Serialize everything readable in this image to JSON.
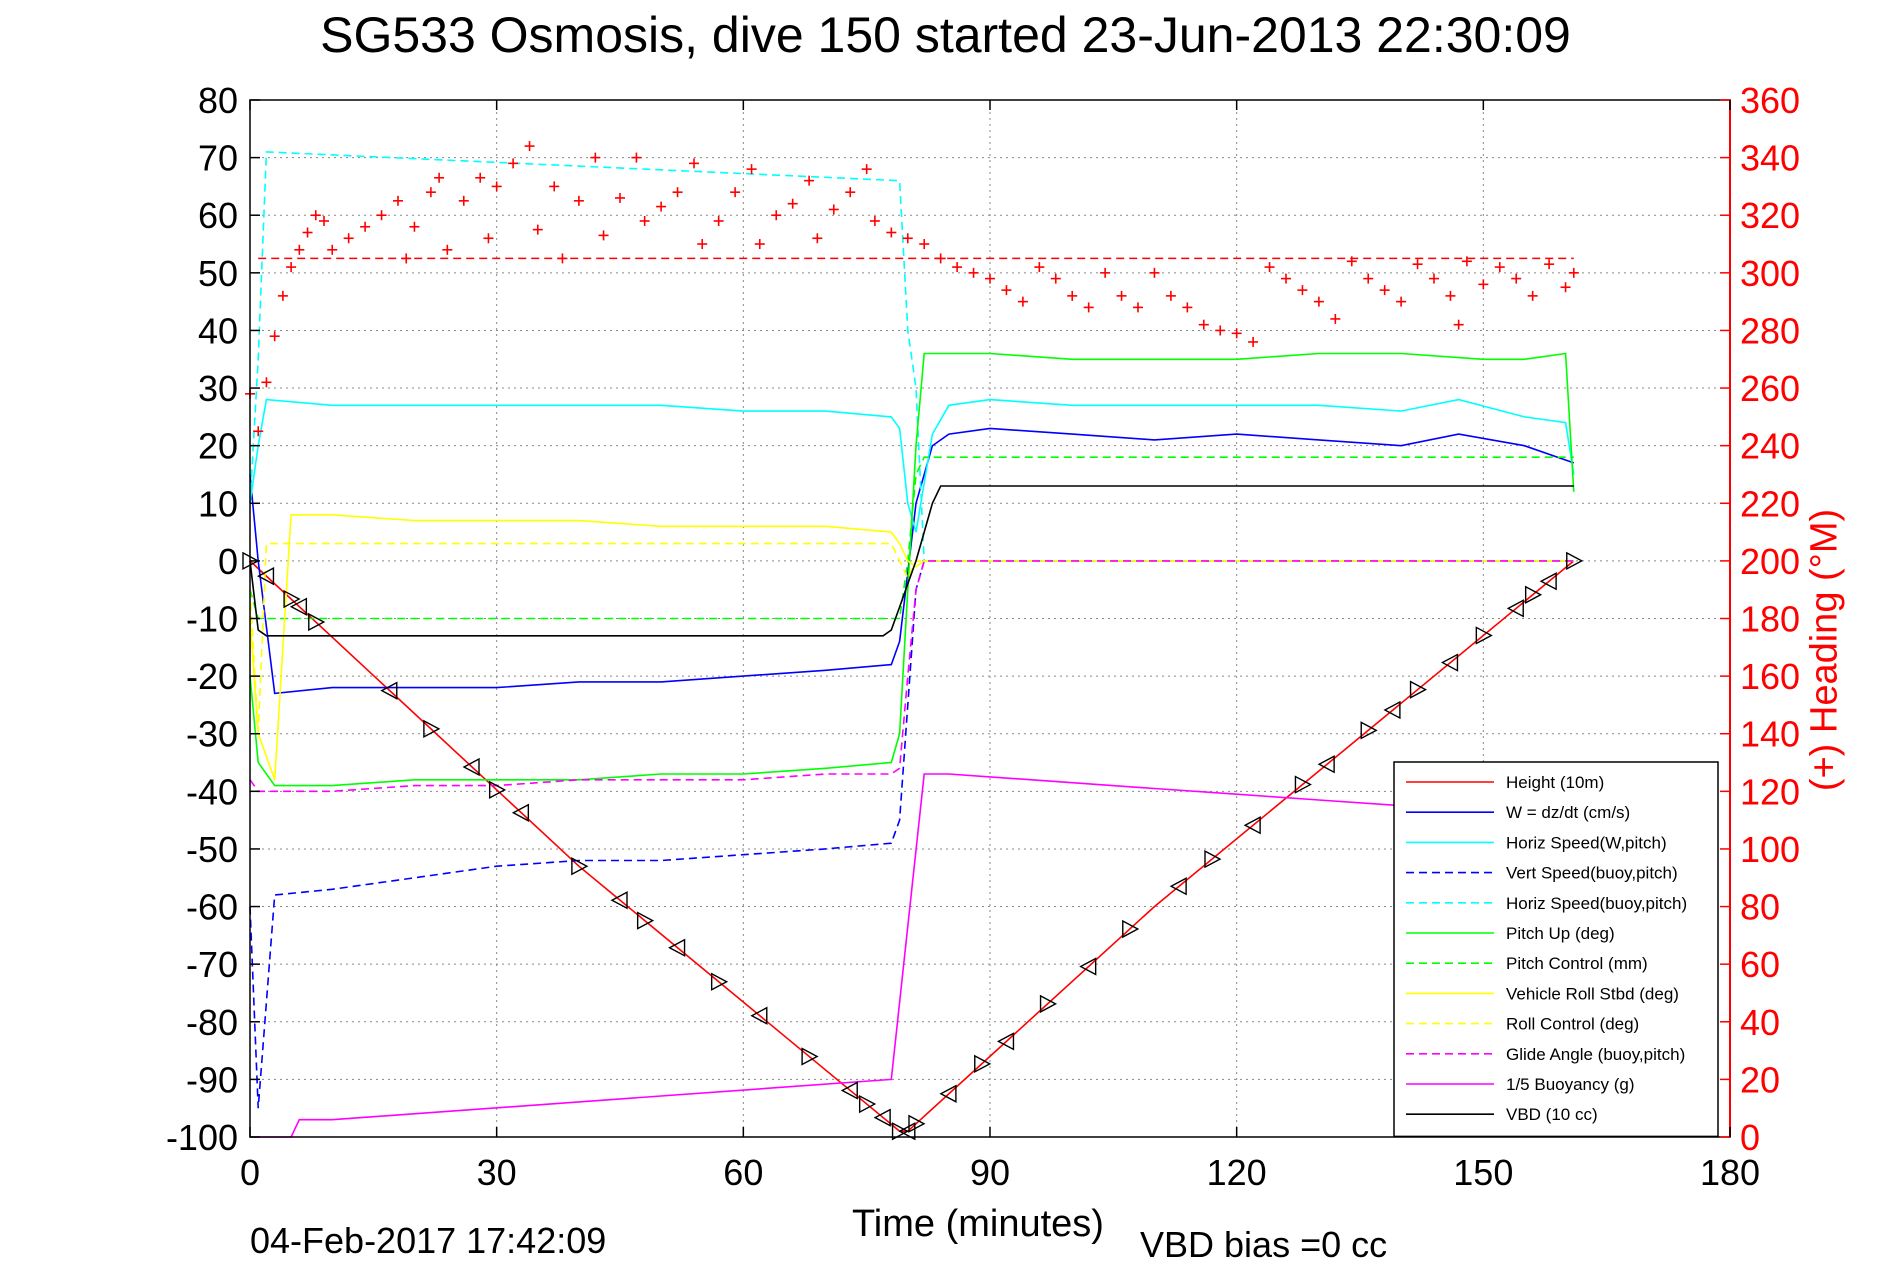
{
  "header": {
    "title": "SG533 Osmosis, dive 150 started 23-Jun-2013 22:30:09",
    "footer_date": "04-Feb-2017 17:42:09",
    "footer_vbd": "VBD bias =0 cc"
  },
  "colors": {
    "height": "#ff0000",
    "w": "#0000ff",
    "horiz_w": "#00ffff",
    "vert_buoy": "#0000ff",
    "horiz_buoy": "#00ffff",
    "pitch_up": "#00ff00",
    "pitch_ctrl": "#00ff00",
    "roll": "#ffff00",
    "roll_ctrl": "#ffff00",
    "glide": "#ff00ff",
    "buoyancy": "#ff00ff",
    "vbd": "#000000",
    "heading": "#ff0000",
    "axis_right": "#ff0000"
  },
  "chart_data": {
    "type": "line",
    "xlabel": "Time (minutes)",
    "ylabel": "",
    "y2label": "(+) Heading (°M)",
    "xlim": [
      0,
      180
    ],
    "ylim": [
      -100,
      80
    ],
    "y2lim": [
      0,
      360
    ],
    "xticks": [
      0,
      30,
      60,
      90,
      120,
      150,
      180
    ],
    "yticks": [
      -100,
      -90,
      -80,
      -70,
      -60,
      -50,
      -40,
      -30,
      -20,
      -10,
      0,
      10,
      20,
      30,
      40,
      50,
      60,
      70,
      80
    ],
    "y2ticks": [
      0,
      20,
      40,
      60,
      80,
      100,
      120,
      140,
      160,
      180,
      200,
      220,
      240,
      260,
      280,
      300,
      320,
      340,
      360
    ],
    "grid": true,
    "legend_position": "bottom-right",
    "series": [
      {
        "name": "Height (10m)",
        "style": "solid",
        "x": [
          0,
          40,
          79,
          80,
          110,
          161
        ],
        "y": [
          0,
          -53,
          -99,
          -99,
          -60,
          0
        ]
      },
      {
        "name": "W = dz/dt (cm/s)",
        "style": "solid",
        "x": [
          0,
          1,
          3,
          10,
          20,
          30,
          40,
          50,
          60,
          70,
          78,
          79,
          80,
          81,
          83,
          85,
          90,
          100,
          110,
          120,
          130,
          140,
          147,
          155,
          161
        ],
        "y": [
          15,
          0,
          -23,
          -22,
          -22,
          -22,
          -21,
          -21,
          -20,
          -19,
          -18,
          -14,
          -2,
          10,
          20,
          22,
          23,
          22,
          21,
          22,
          21,
          20,
          22,
          20,
          17
        ]
      },
      {
        "name": "Horiz Speed(W,pitch)",
        "style": "solid",
        "x": [
          0,
          1,
          2,
          10,
          20,
          30,
          40,
          50,
          60,
          70,
          78,
          79,
          80,
          81,
          83,
          85,
          90,
          100,
          110,
          120,
          130,
          140,
          147,
          155,
          160,
          161
        ],
        "y": [
          10,
          20,
          28,
          27,
          27,
          27,
          27,
          27,
          26,
          26,
          25,
          23,
          10,
          5,
          22,
          27,
          28,
          27,
          27,
          27,
          27,
          26,
          28,
          25,
          24,
          15
        ]
      },
      {
        "name": "Vert Speed(buoy,pitch)",
        "style": "dashed",
        "x": [
          0,
          1,
          3,
          10,
          20,
          30,
          40,
          50,
          60,
          70,
          78,
          79,
          80,
          81,
          82,
          161
        ],
        "y": [
          -60,
          -95,
          -58,
          -57,
          -55,
          -53,
          -52,
          -52,
          -51,
          -50,
          -49,
          -45,
          -25,
          -5,
          0,
          0
        ]
      },
      {
        "name": "Horiz Speed(buoy,pitch)",
        "style": "dashed",
        "x": [
          0,
          1,
          2,
          79,
          80,
          81,
          82,
          161
        ],
        "y": [
          10,
          35,
          71,
          66,
          40,
          30,
          0,
          0
        ]
      },
      {
        "name": "Pitch Up (deg)",
        "style": "solid",
        "x": [
          0,
          1,
          3,
          10,
          20,
          30,
          40,
          50,
          60,
          70,
          78,
          79,
          80,
          81,
          82,
          90,
          100,
          110,
          120,
          130,
          140,
          150,
          155,
          160,
          161
        ],
        "y": [
          -20,
          -35,
          -39,
          -39,
          -38,
          -38,
          -38,
          -37,
          -37,
          -36,
          -35,
          -30,
          -5,
          20,
          36,
          36,
          35,
          35,
          35,
          36,
          36,
          35,
          35,
          36,
          12
        ]
      },
      {
        "name": "Pitch Control (mm)",
        "style": "dashed",
        "x": [
          0,
          1,
          2,
          79,
          80,
          81,
          82,
          161
        ],
        "y": [
          -5,
          -10,
          -10,
          -10,
          0,
          15,
          18,
          18
        ]
      },
      {
        "name": "Vehicle Roll Stbd (deg)",
        "style": "solid",
        "x": [
          0,
          1,
          3,
          5,
          10,
          20,
          30,
          40,
          50,
          60,
          70,
          78,
          79,
          80,
          81,
          82,
          161
        ],
        "y": [
          -10,
          -30,
          -38,
          8,
          8,
          7,
          7,
          7,
          6,
          6,
          6,
          5,
          3,
          0,
          -1,
          0,
          0
        ]
      },
      {
        "name": "Roll Control (deg)",
        "style": "dashed",
        "x": [
          0,
          1,
          2,
          78,
          79,
          80,
          81,
          161
        ],
        "y": [
          -5,
          -30,
          3,
          3,
          0,
          -3,
          0,
          0
        ]
      },
      {
        "name": "Glide Angle (buoy,pitch)",
        "style": "dashed",
        "x": [
          0,
          1,
          3,
          10,
          20,
          30,
          40,
          50,
          60,
          70,
          78,
          79,
          80,
          81,
          82,
          161
        ],
        "y": [
          -38,
          -40,
          -40,
          -40,
          -39,
          -39,
          -38,
          -38,
          -38,
          -37,
          -37,
          -36,
          -20,
          -5,
          0,
          0
        ]
      },
      {
        "name": "1/5 Buoyancy (g)",
        "style": "solid",
        "x": [
          0,
          5,
          6,
          10,
          78,
          82,
          85,
          90,
          100,
          110,
          120,
          130,
          140,
          145
        ],
        "y": [
          -100,
          -100,
          -97,
          -97,
          -90,
          -37,
          -37,
          -37.5,
          -38.5,
          -39.5,
          -40.5,
          -41.5,
          -42.5,
          -43
        ]
      },
      {
        "name": "VBD (10 cc)",
        "style": "solid",
        "x": [
          0,
          1,
          2,
          77,
          78,
          79,
          80,
          81,
          82,
          83,
          84,
          90,
          161
        ],
        "y": [
          0,
          -12,
          -13,
          -13,
          -12,
          -8,
          -4,
          0,
          5,
          10,
          13,
          13,
          13
        ]
      }
    ],
    "heading_reference": 305,
    "heading_points": [
      [
        0,
        258
      ],
      [
        1,
        245
      ],
      [
        2,
        262
      ],
      [
        3,
        278
      ],
      [
        4,
        292
      ],
      [
        5,
        302
      ],
      [
        6,
        308
      ],
      [
        7,
        314
      ],
      [
        8,
        320
      ],
      [
        9,
        318
      ],
      [
        10,
        308
      ],
      [
        12,
        312
      ],
      [
        14,
        316
      ],
      [
        16,
        320
      ],
      [
        18,
        325
      ],
      [
        19,
        305
      ],
      [
        20,
        316
      ],
      [
        22,
        328
      ],
      [
        23,
        333
      ],
      [
        24,
        308
      ],
      [
        26,
        325
      ],
      [
        28,
        333
      ],
      [
        29,
        312
      ],
      [
        30,
        330
      ],
      [
        32,
        338
      ],
      [
        34,
        344
      ],
      [
        35,
        315
      ],
      [
        37,
        330
      ],
      [
        38,
        305
      ],
      [
        40,
        325
      ],
      [
        42,
        340
      ],
      [
        43,
        313
      ],
      [
        45,
        326
      ],
      [
        47,
        340
      ],
      [
        48,
        318
      ],
      [
        50,
        323
      ],
      [
        52,
        328
      ],
      [
        54,
        338
      ],
      [
        55,
        310
      ],
      [
        57,
        318
      ],
      [
        59,
        328
      ],
      [
        61,
        336
      ],
      [
        62,
        310
      ],
      [
        64,
        320
      ],
      [
        66,
        324
      ],
      [
        68,
        332
      ],
      [
        69,
        312
      ],
      [
        71,
        322
      ],
      [
        73,
        328
      ],
      [
        75,
        336
      ],
      [
        76,
        318
      ],
      [
        78,
        314
      ],
      [
        80,
        312
      ],
      [
        82,
        310
      ],
      [
        84,
        305
      ],
      [
        86,
        302
      ],
      [
        88,
        300
      ],
      [
        90,
        298
      ],
      [
        92,
        294
      ],
      [
        94,
        290
      ],
      [
        96,
        302
      ],
      [
        98,
        298
      ],
      [
        100,
        292
      ],
      [
        102,
        288
      ],
      [
        104,
        300
      ],
      [
        106,
        292
      ],
      [
        108,
        288
      ],
      [
        110,
        300
      ],
      [
        112,
        292
      ],
      [
        114,
        288
      ],
      [
        116,
        282
      ],
      [
        118,
        280
      ],
      [
        120,
        279
      ],
      [
        122,
        276
      ],
      [
        124,
        302
      ],
      [
        126,
        298
      ],
      [
        128,
        294
      ],
      [
        130,
        290
      ],
      [
        132,
        284
      ],
      [
        134,
        304
      ],
      [
        136,
        298
      ],
      [
        138,
        294
      ],
      [
        140,
        290
      ],
      [
        142,
        303
      ],
      [
        144,
        298
      ],
      [
        146,
        292
      ],
      [
        147,
        282
      ],
      [
        148,
        304
      ],
      [
        150,
        296
      ],
      [
        152,
        302
      ],
      [
        154,
        298
      ],
      [
        156,
        292
      ],
      [
        158,
        303
      ],
      [
        160,
        295
      ],
      [
        161,
        300
      ]
    ],
    "triangle_markers": [
      0,
      2,
      5,
      6,
      8,
      17,
      22,
      27,
      30,
      33,
      40,
      45,
      48,
      52,
      57,
      62,
      68,
      73,
      75,
      77,
      79,
      80,
      81,
      85,
      89,
      92,
      97,
      102,
      107,
      113,
      117,
      122,
      128,
      131,
      136,
      139,
      142,
      146,
      150,
      154,
      156,
      158,
      161
    ]
  },
  "legend": [
    {
      "label": "Height (10m)",
      "color": "#ff0000",
      "dash": false
    },
    {
      "label": "W = dz/dt (cm/s)",
      "color": "#0000ff",
      "dash": false
    },
    {
      "label": "Horiz Speed(W,pitch)",
      "color": "#00ffff",
      "dash": false
    },
    {
      "label": "Vert Speed(buoy,pitch)",
      "color": "#0000ff",
      "dash": true
    },
    {
      "label": "Horiz Speed(buoy,pitch)",
      "color": "#00ffff",
      "dash": true
    },
    {
      "label": "Pitch Up (deg)",
      "color": "#00ff00",
      "dash": false
    },
    {
      "label": "Pitch Control (mm)",
      "color": "#00ff00",
      "dash": true
    },
    {
      "label": "Vehicle Roll Stbd (deg)",
      "color": "#ffff00",
      "dash": false
    },
    {
      "label": "Roll Control (deg)",
      "color": "#ffff00",
      "dash": true
    },
    {
      "label": "Glide Angle (buoy,pitch)",
      "color": "#ff00ff",
      "dash": true
    },
    {
      "label": "1/5 Buoyancy (g)",
      "color": "#ff00ff",
      "dash": false
    },
    {
      "label": "VBD (10 cc)",
      "color": "#000000",
      "dash": false
    }
  ]
}
